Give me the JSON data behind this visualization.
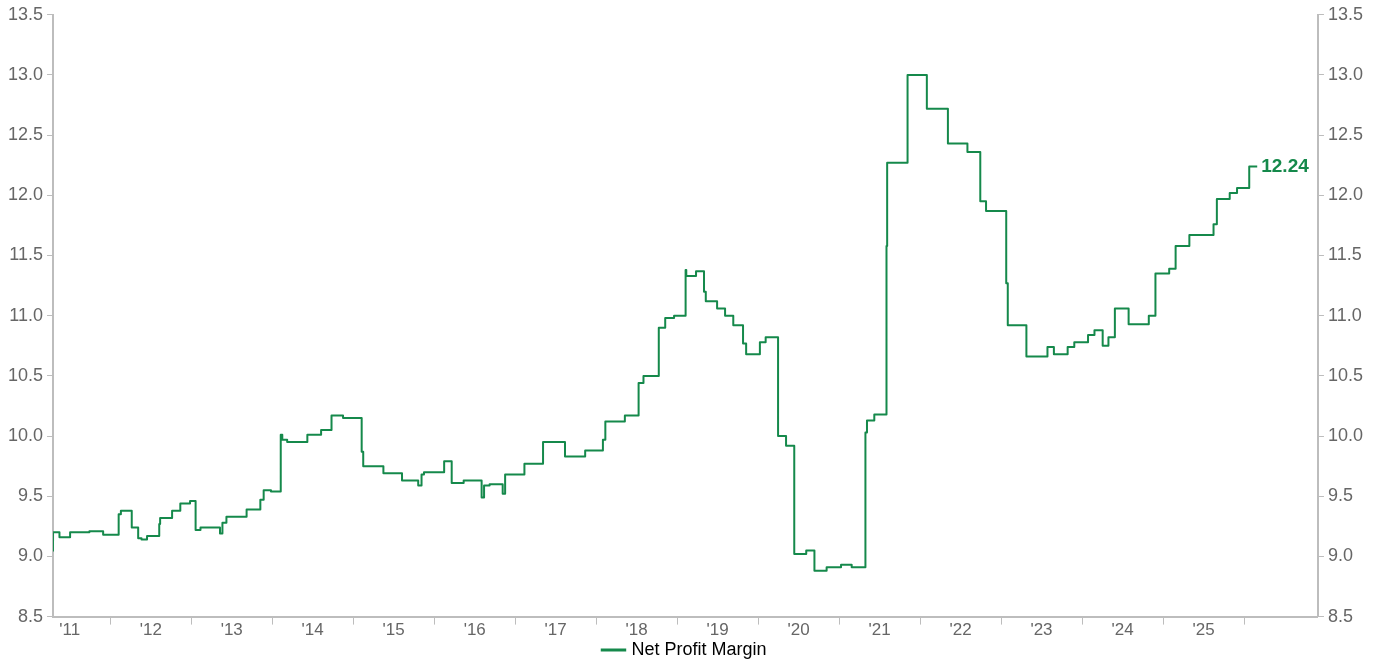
{
  "chart_data": {
    "type": "step",
    "xlim": [
      "2011-04-17",
      "2026-11-29"
    ],
    "xticks": [
      {
        "value": "2011-07-01",
        "label": "'11"
      },
      {
        "value": "2012",
        "label": null
      },
      {
        "value": "2012-07-01",
        "label": "'12"
      },
      {
        "value": "2013",
        "label": null
      },
      {
        "value": "2013-07-01",
        "label": "'13"
      },
      {
        "value": "2014",
        "label": null
      },
      {
        "value": "2014-07-01",
        "label": "'14"
      },
      {
        "value": "2015",
        "label": null
      },
      {
        "value": "2015-07-01",
        "label": "'15"
      },
      {
        "value": "2016",
        "label": null
      },
      {
        "value": "2016-07-01",
        "label": "'16"
      },
      {
        "value": "2017",
        "label": null
      },
      {
        "value": "2017-07-01",
        "label": "'17"
      },
      {
        "value": "2018",
        "label": null
      },
      {
        "value": "2018-07-01",
        "label": "'18"
      },
      {
        "value": "2019",
        "label": null
      },
      {
        "value": "2019-07-01",
        "label": "'19"
      },
      {
        "value": "2020",
        "label": null
      },
      {
        "value": "2020-07-01",
        "label": "'20"
      },
      {
        "value": "2021",
        "label": null
      },
      {
        "value": "2021-07-01",
        "label": "'21"
      },
      {
        "value": "2022",
        "label": null
      },
      {
        "value": "2022-07-01",
        "label": "'22"
      },
      {
        "value": "2023",
        "label": null
      },
      {
        "value": "2023-07-01",
        "label": "'23"
      },
      {
        "value": "2024",
        "label": null
      },
      {
        "value": "2024-07-01",
        "label": "'24"
      },
      {
        "value": "2025",
        "label": null
      },
      {
        "value": "2025-07-01",
        "label": "'25"
      },
      {
        "value": "2026",
        "label": null
      }
    ],
    "ylim": [
      8.5,
      13.5
    ],
    "yticks": [
      8.5,
      {
        "value": 9,
        "label": "9.0"
      },
      9.5,
      {
        "value": 10,
        "label": "10.0"
      },
      10.5,
      {
        "value": 11,
        "label": "11.0"
      },
      11.5,
      {
        "value": 12,
        "label": "12.0"
      },
      12.5,
      {
        "value": 13,
        "label": "13.0"
      },
      13.5
    ],
    "y2lim": [
      8.5,
      13.5
    ],
    "y2ticks": [
      8.5,
      {
        "value": 9,
        "label": "9.0"
      },
      9.5,
      {
        "value": 10,
        "label": "10.0"
      },
      10.5,
      {
        "value": 11,
        "label": "11.0"
      },
      11.5,
      {
        "value": 12,
        "label": "12.0"
      },
      12.5,
      {
        "value": 13,
        "label": "13.0"
      },
      13.5
    ],
    "grid": false,
    "legend": "bottom",
    "marker": "none",
    "line_style": "solid",
    "series": [
      {
        "name": "Net Profit Margin",
        "color": "#15894b",
        "x": [
          "2011-04-17",
          "2011-05-16",
          "2011-07-03",
          "2011-09-28",
          "2011-11-29",
          "2012-02-07",
          "2012-02-17",
          "2012-04-06",
          "2012-05-05",
          "2012-05-20",
          "2012-06-14",
          "2012-08-08",
          "2012-08-12",
          "2012-10-05",
          "2012-11-11",
          "2012-12-25",
          "2013-01-19",
          "2013-02-10",
          "2013-05-09",
          "2013-05-20",
          "2013-06-07",
          "2013-07-06",
          "2013-09-06",
          "2013-11-07",
          "2013-11-22",
          "2013-12-25",
          "2014-02-07",
          "2014-02-14",
          "2014-03-08",
          "2014-06-07",
          "2014-08-08",
          "2014-09-24",
          "2014-11-15",
          "2015-02-07",
          "2015-02-14",
          "2015-05-16",
          "2015-08-08",
          "2015-10-20",
          "2015-11-04",
          "2015-11-15",
          "2016-02-14",
          "2016-03-19",
          "2016-05-12",
          "2016-08-01",
          "2016-08-12",
          "2016-09-06",
          "2016-11-04",
          "2016-11-15",
          "2017-02-10",
          "2017-05-05",
          "2017-08-12",
          "2017-11-11",
          "2018-01-30",
          "2018-02-10",
          "2018-05-09",
          "2018-07-10",
          "2018-08-01",
          "2018-10-09",
          "2018-11-07",
          "2018-12-17",
          "2019-02-07",
          "2019-02-10",
          "2019-03-26",
          "2019-05-01",
          "2019-05-09",
          "2019-06-29",
          "2019-08-04",
          "2019-09-10",
          "2019-10-24",
          "2019-11-07",
          "2020-01-08",
          "2020-02-03",
          "2020-03-30",
          "2020-05-05",
          "2020-06-11",
          "2020-08-04",
          "2020-09-10",
          "2020-11-04",
          "2021-01-08",
          "2021-02-25",
          "2021-04-28",
          "2021-05-05",
          "2021-06-07",
          "2021-08-01",
          "2021-08-04",
          "2021-11-04",
          "2022-01-30",
          "2022-05-05",
          "2022-08-01",
          "2022-09-28",
          "2022-10-24",
          "2023-01-23",
          "2023-01-30",
          "2023-04-24",
          "2023-07-28",
          "2023-08-26",
          "2023-10-27",
          "2023-11-26",
          "2024-01-27",
          "2024-02-25",
          "2024-04-02",
          "2024-04-28",
          "2024-05-27",
          "2024-07-28",
          "2024-10-27",
          "2024-11-26",
          "2025-01-27",
          "2025-02-25",
          "2025-04-28",
          "2025-08-15",
          "2025-08-30",
          "2025-10-27",
          "2025-11-29",
          "2026-01-23",
          "2026-02-28"
        ],
        "values": [
          9.04,
          9.2,
          9.16,
          9.2,
          9.21,
          9.18,
          9.35,
          9.38,
          9.24,
          9.15,
          9.14,
          9.17,
          9.27,
          9.32,
          9.38,
          9.44,
          9.46,
          9.22,
          9.24,
          9.19,
          9.28,
          9.33,
          9.33,
          9.39,
          9.47,
          9.55,
          9.54,
          10.01,
          9.97,
          9.95,
          10.01,
          10.05,
          10.17,
          10.15,
          9.87,
          9.75,
          9.69,
          9.63,
          9.59,
          9.68,
          9.7,
          9.79,
          9.61,
          9.63,
          9.49,
          9.59,
          9.6,
          9.52,
          9.68,
          9.77,
          9.95,
          9.83,
          9.88,
          9.97,
          10.12,
          10.17,
          10.44,
          10.5,
          10.9,
          10.98,
          11.0,
          11.38,
          11.33,
          11.37,
          11.2,
          11.12,
          11.06,
          11.0,
          10.92,
          10.77,
          10.68,
          10.78,
          10.82,
          10.0,
          9.92,
          9.02,
          9.05,
          8.88,
          8.91,
          8.93,
          8.91,
          10.03,
          10.13,
          10.18,
          11.58,
          12.27,
          13.0,
          12.72,
          12.43,
          12.36,
          11.95,
          11.87,
          11.27,
          10.92,
          10.66,
          10.74,
          10.68,
          10.74,
          10.78,
          10.84,
          10.88,
          10.75,
          10.82,
          11.06,
          10.93,
          11.0,
          11.35,
          11.39,
          11.58,
          11.67,
          11.76,
          11.97,
          12.02,
          12.06,
          12.24
        ]
      }
    ],
    "annotations": [
      {
        "text": "12.24",
        "x": "2026-02-28",
        "y": 12.24
      }
    ]
  }
}
